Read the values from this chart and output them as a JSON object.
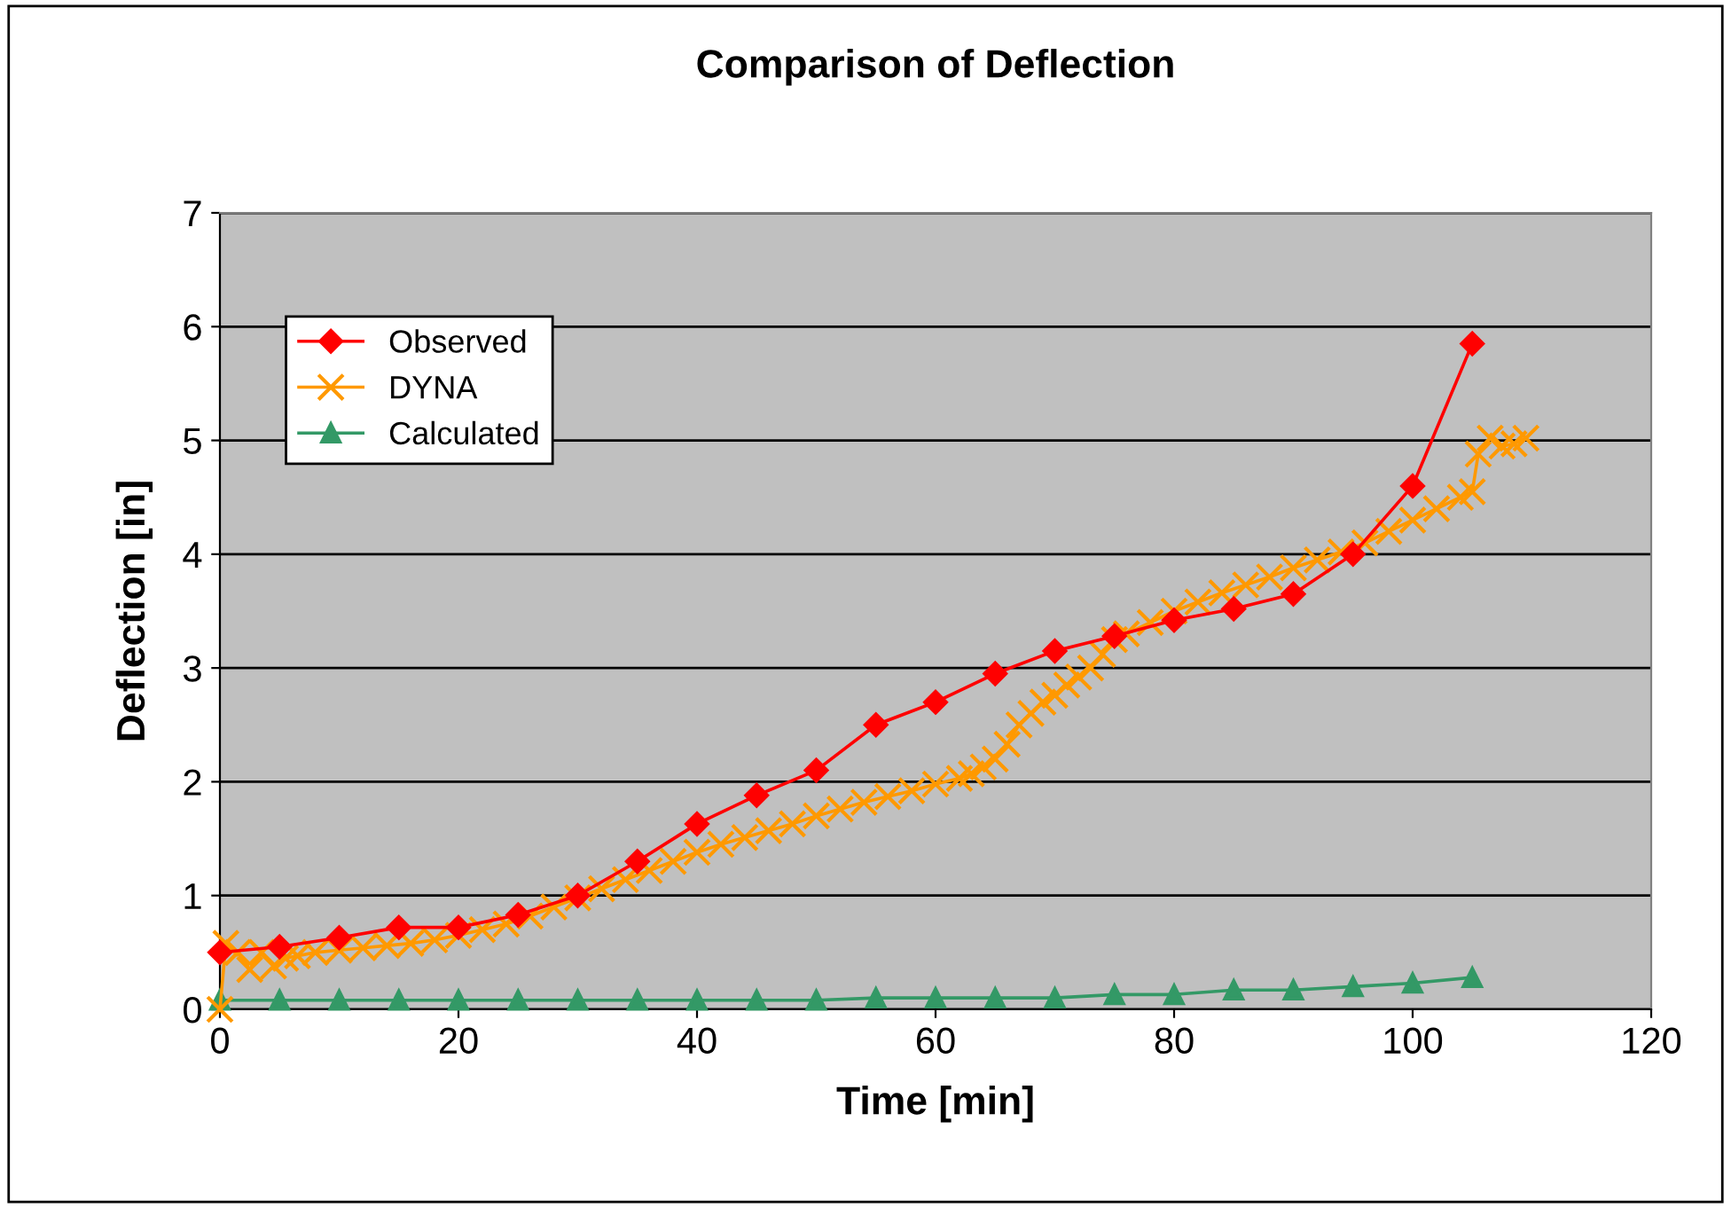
{
  "chart_data": {
    "type": "line",
    "title": "Comparison of Deflection",
    "xlabel": "Time [min]",
    "ylabel": "Deflection [in]",
    "xlim": [
      0,
      120
    ],
    "xticks": [
      0,
      20,
      40,
      60,
      80,
      100,
      120
    ],
    "ylim": [
      0,
      7
    ],
    "yticks": [
      0,
      1,
      2,
      3,
      4,
      5,
      6,
      7
    ],
    "grid": "y",
    "legend": "top left",
    "series": [
      {
        "name": "Observed",
        "color": "#ff0000",
        "marker": "diamond",
        "x": [
          0,
          5,
          10,
          15,
          20,
          25,
          30,
          35,
          40,
          45,
          50,
          55,
          60,
          65,
          70,
          75,
          80,
          85,
          90,
          95,
          100,
          105
        ],
        "values": [
          0.5,
          0.55,
          0.63,
          0.72,
          0.72,
          0.83,
          1.0,
          1.3,
          1.63,
          1.88,
          2.1,
          2.5,
          2.7,
          2.95,
          3.15,
          3.28,
          3.42,
          3.52,
          3.65,
          4.0,
          4.6,
          5.85
        ]
      },
      {
        "name": "DYNA",
        "color": "#ff9900",
        "marker": "cross",
        "x": [
          0,
          0.5,
          1.5,
          2.5,
          3.5,
          4.5,
          5.5,
          6.5,
          8,
          10,
          12,
          14,
          16,
          18,
          20,
          22,
          24,
          26,
          28,
          30,
          32,
          34,
          36,
          38,
          40,
          42,
          44,
          46,
          48,
          50,
          52,
          54,
          56,
          58,
          60,
          62,
          63,
          64,
          65,
          66,
          67,
          68,
          69,
          70,
          71,
          72,
          73,
          74,
          75,
          76,
          78,
          80,
          82,
          84,
          86,
          88,
          90,
          92,
          94,
          96,
          98,
          100,
          102,
          104,
          105,
          105.5,
          106.5,
          107.5,
          108.5,
          109.5
        ],
        "values": [
          0,
          0.58,
          0.5,
          0.35,
          0.5,
          0.38,
          0.45,
          0.47,
          0.5,
          0.52,
          0.54,
          0.56,
          0.58,
          0.61,
          0.65,
          0.7,
          0.75,
          0.82,
          0.9,
          0.98,
          1.06,
          1.14,
          1.22,
          1.3,
          1.38,
          1.45,
          1.51,
          1.57,
          1.63,
          1.7,
          1.76,
          1.82,
          1.87,
          1.92,
          1.98,
          2.03,
          2.07,
          2.13,
          2.2,
          2.33,
          2.5,
          2.6,
          2.7,
          2.76,
          2.85,
          2.92,
          3.0,
          3.12,
          3.25,
          3.3,
          3.4,
          3.5,
          3.58,
          3.66,
          3.73,
          3.8,
          3.88,
          3.95,
          4.02,
          4.1,
          4.2,
          4.3,
          4.4,
          4.5,
          4.55,
          4.88,
          5.02,
          4.95,
          4.97,
          5.02
        ]
      },
      {
        "name": "Calculated",
        "color": "#339966",
        "marker": "triangle",
        "x": [
          0,
          5,
          10,
          15,
          20,
          25,
          30,
          35,
          40,
          45,
          50,
          55,
          60,
          65,
          70,
          75,
          80,
          85,
          90,
          95,
          100,
          105
        ],
        "values": [
          0.08,
          0.08,
          0.08,
          0.08,
          0.08,
          0.08,
          0.08,
          0.08,
          0.08,
          0.08,
          0.08,
          0.1,
          0.1,
          0.1,
          0.1,
          0.13,
          0.13,
          0.17,
          0.17,
          0.2,
          0.23,
          0.28
        ]
      }
    ]
  }
}
